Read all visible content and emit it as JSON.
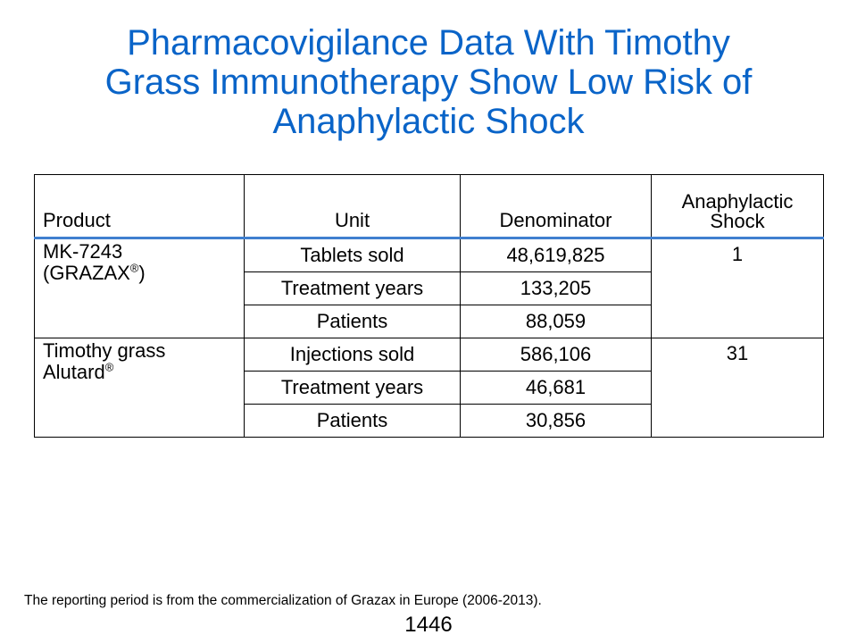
{
  "title": {
    "line1": "Pharmacovigilance Data With Timothy",
    "line2": "Grass Immunotherapy Show Low Risk of",
    "line3": "Anaphylactic Shock"
  },
  "table": {
    "headers": {
      "product": "Product",
      "unit": "Unit",
      "denominator": "Denominator",
      "shock_line1": "Anaphylactic",
      "shock_line2": "Shock"
    },
    "groups": [
      {
        "product_line1": "MK-7243",
        "product_line2_prefix": "(GRAZAX",
        "product_line2_sup": "®",
        "product_line2_suffix": ")",
        "anaphylactic_shock": "1",
        "rows": [
          {
            "unit": "Tablets sold",
            "denominator": "48,619,825"
          },
          {
            "unit": "Treatment years",
            "denominator": "133,205"
          },
          {
            "unit": "Patients",
            "denominator": "88,059"
          }
        ]
      },
      {
        "product_line1": "Timothy grass",
        "product_line2_prefix": "Alutard",
        "product_line2_sup": "®",
        "product_line2_suffix": "",
        "anaphylactic_shock": "31",
        "rows": [
          {
            "unit": "Injections sold",
            "denominator": "586,106"
          },
          {
            "unit": "Treatment years",
            "denominator": "46,681"
          },
          {
            "unit": "Patients",
            "denominator": "30,856"
          }
        ]
      }
    ]
  },
  "footnote": "The reporting period is from the commercialization of Grazax in Europe (2006-2013).",
  "page_number": "1446",
  "colors": {
    "title": "#0a64c8",
    "header_rule": "#3f7fcf"
  }
}
